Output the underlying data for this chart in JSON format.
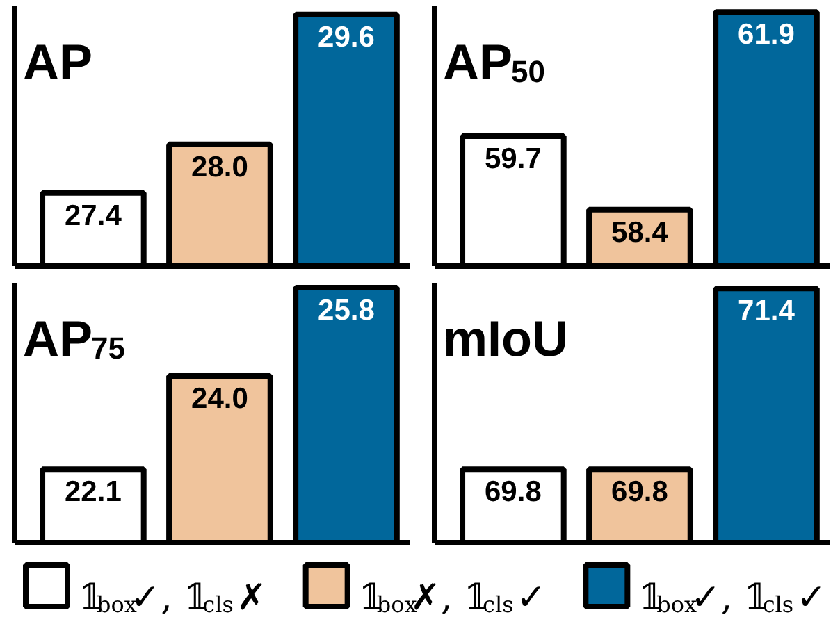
{
  "chart_data": [
    {
      "type": "bar",
      "title": "AP",
      "categories": [
        null,
        null,
        null
      ],
      "values": [
        27.4,
        28.0,
        29.6
      ],
      "value_labels": [
        "27.4",
        "28.0",
        "29.6"
      ],
      "colors": [
        "#ffffff",
        "#f0c49c",
        "#01679b"
      ],
      "ylim": [
        26.5,
        29.7
      ]
    },
    {
      "type": "bar",
      "title": "AP$_{50}$",
      "categories": [
        null,
        null,
        null
      ],
      "values": [
        59.7,
        58.4,
        61.9
      ],
      "value_labels": [
        "59.7",
        "58.4",
        "61.9"
      ],
      "colors": [
        "#ffffff",
        "#f0c49c",
        "#01679b"
      ],
      "ylim": [
        57.4,
        62.0
      ]
    },
    {
      "type": "bar",
      "title": "AP$_{75}$",
      "categories": [
        null,
        null,
        null
      ],
      "values": [
        22.1,
        24.0,
        25.8
      ],
      "value_labels": [
        "22.1",
        "24.0",
        "25.8"
      ],
      "colors": [
        "#ffffff",
        "#f0c49c",
        "#01679b"
      ],
      "ylim": [
        20.6,
        25.9
      ]
    },
    {
      "type": "bar",
      "title": "mIoU",
      "categories": [
        null,
        null,
        null
      ],
      "values": [
        69.8,
        69.8,
        71.4
      ],
      "value_labels": [
        "69.8",
        "69.8",
        "71.4"
      ],
      "colors": [
        "#ffffff",
        "#f0c49c",
        "#01679b"
      ],
      "ylim": [
        69.15,
        71.45
      ]
    },
    {
      "type": "other",
      "categories": [
        "𝟙$_{box}$✓, 𝟙$_{cls}$✗",
        "𝟙$_{box}$✗, 𝟙$_{cls}$✓",
        "𝟙$_{box}$✓, 𝟙$_{cls}$✓"
      ],
      "colors": [
        "#ffffff",
        "#f0c49c",
        "#01679b"
      ]
    }
  ]
}
